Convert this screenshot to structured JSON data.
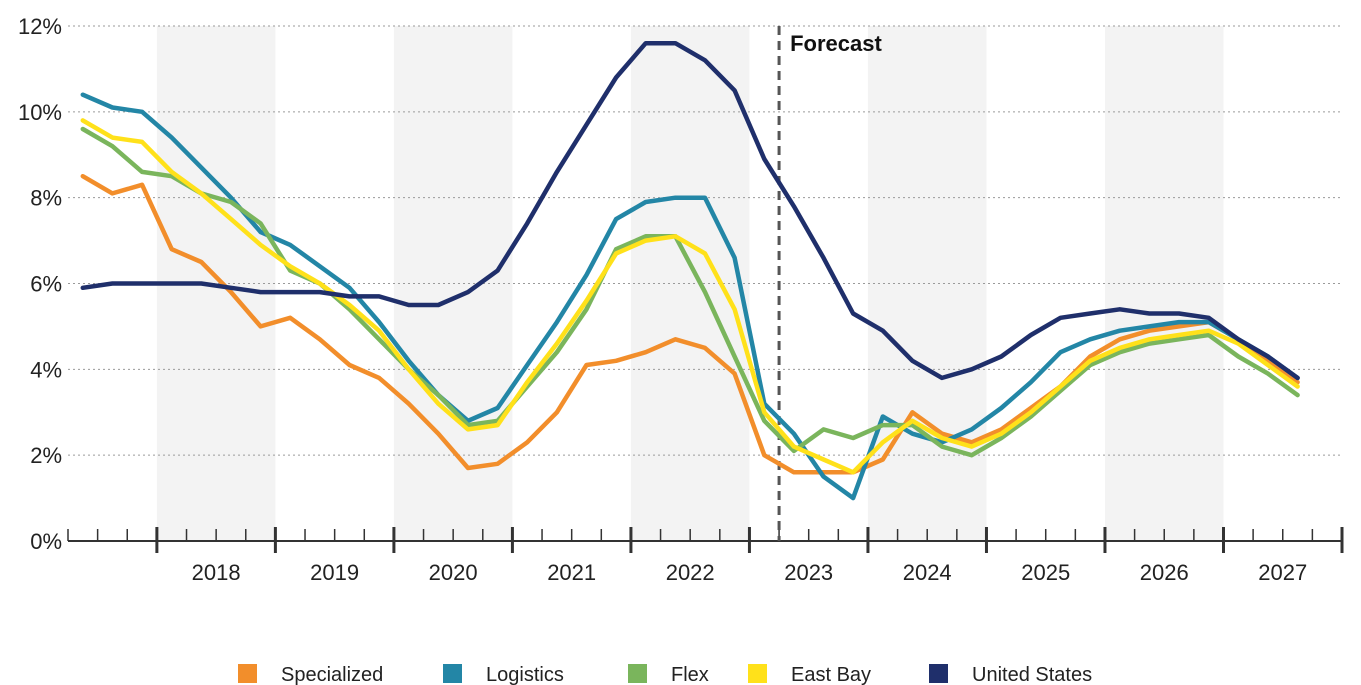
{
  "chart_data": {
    "type": "line",
    "title": "",
    "xlabel": "",
    "ylabel": "",
    "ylim": [
      0,
      12
    ],
    "y_ticks": [
      "0%",
      "2%",
      "4%",
      "6%",
      "8%",
      "10%",
      "12%"
    ],
    "y_tick_values": [
      0,
      2,
      4,
      6,
      8,
      10,
      12
    ],
    "year_labels": [
      "2018",
      "2019",
      "2020",
      "2021",
      "2022",
      "2023",
      "2024",
      "2025",
      "2026",
      "2027"
    ],
    "x_unit": "quarter",
    "x_start": "2017 Q2",
    "x_end": "2027 Q4",
    "forecast_label": "Forecast",
    "forecast_start": "2023 Q2",
    "grid": "horizontal dotted",
    "legend_position": "bottom",
    "colors": {
      "Specialized": "#F28E2B",
      "Logistics": "#2386A6",
      "Flex": "#7AB55C",
      "East Bay": "#FFE11A",
      "United States": "#1F2F6B"
    },
    "series": [
      {
        "name": "Specialized",
        "values": [
          8.5,
          8.1,
          8.3,
          6.8,
          6.5,
          5.8,
          5.0,
          5.2,
          4.7,
          4.1,
          3.8,
          3.2,
          2.5,
          1.7,
          1.8,
          2.3,
          3.0,
          4.1,
          4.2,
          4.4,
          4.7,
          4.5,
          3.9,
          2.0,
          1.6,
          1.6,
          1.6,
          1.9,
          3.0,
          2.5,
          2.3,
          2.6,
          3.1,
          3.6,
          4.3,
          4.7,
          4.9,
          5.0,
          5.1,
          4.7,
          4.2,
          3.7
        ]
      },
      {
        "name": "Logistics",
        "values": [
          10.4,
          10.1,
          10.0,
          9.4,
          8.7,
          8.0,
          7.2,
          6.9,
          6.4,
          5.9,
          5.1,
          4.2,
          3.4,
          2.8,
          3.1,
          4.1,
          5.1,
          6.2,
          7.5,
          7.9,
          8.0,
          8.0,
          6.6,
          3.2,
          2.5,
          1.5,
          1.0,
          2.9,
          2.5,
          2.3,
          2.6,
          3.1,
          3.7,
          4.4,
          4.7,
          4.9,
          5.0,
          5.1,
          5.1,
          4.7,
          4.3,
          3.8
        ]
      },
      {
        "name": "Flex",
        "values": [
          9.6,
          9.2,
          8.6,
          8.5,
          8.1,
          7.9,
          7.4,
          6.3,
          6.0,
          5.4,
          4.7,
          4.0,
          3.4,
          2.7,
          2.8,
          3.6,
          4.4,
          5.4,
          6.8,
          7.1,
          7.1,
          5.8,
          4.3,
          2.8,
          2.1,
          2.6,
          2.4,
          2.7,
          2.7,
          2.2,
          2.0,
          2.4,
          2.9,
          3.5,
          4.1,
          4.4,
          4.6,
          4.7,
          4.8,
          4.3,
          3.9,
          3.4
        ]
      },
      {
        "name": "East Bay",
        "values": [
          9.8,
          9.4,
          9.3,
          8.6,
          8.1,
          7.5,
          6.9,
          6.4,
          6.0,
          5.5,
          4.9,
          4.0,
          3.2,
          2.6,
          2.7,
          3.7,
          4.6,
          5.6,
          6.7,
          7.0,
          7.1,
          6.7,
          5.4,
          3.0,
          2.2,
          1.9,
          1.6,
          2.3,
          2.8,
          2.4,
          2.2,
          2.5,
          3.0,
          3.6,
          4.2,
          4.5,
          4.7,
          4.8,
          4.9,
          4.6,
          4.1,
          3.6
        ]
      },
      {
        "name": "United States",
        "values": [
          5.9,
          6.0,
          6.0,
          6.0,
          6.0,
          5.9,
          5.8,
          5.8,
          5.8,
          5.7,
          5.7,
          5.5,
          5.5,
          5.8,
          6.3,
          7.4,
          8.6,
          9.7,
          10.8,
          11.6,
          11.6,
          11.2,
          10.5,
          8.9,
          7.8,
          6.6,
          5.3,
          4.9,
          4.2,
          3.8,
          4.0,
          4.3,
          4.8,
          5.2,
          5.3,
          5.4,
          5.3,
          5.3,
          5.2,
          4.7,
          4.3,
          3.8
        ]
      }
    ]
  }
}
